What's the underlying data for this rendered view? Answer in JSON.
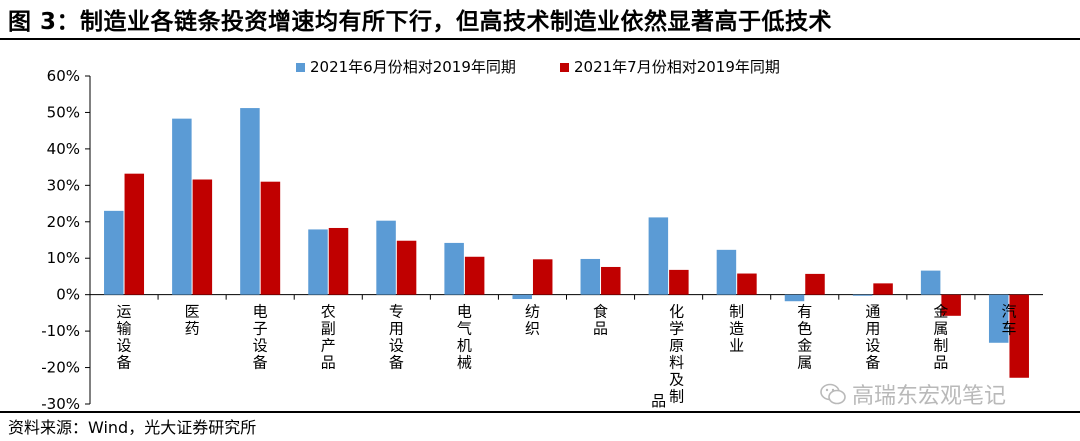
{
  "title": "图 3：制造业各链条投资增速均有所下行，但高技术制造业依然显著高于低技术",
  "source": "资料来源：Wind，光大证券研究所",
  "watermark": "高瑞东宏观笔记",
  "colors": {
    "series1": "#5b9bd5",
    "series2": "#c00000"
  },
  "chart_data": {
    "type": "bar",
    "categories": [
      "运输设备",
      "医药",
      "电子设备",
      "农副产品",
      "专用设备",
      "电气机械",
      "纺织",
      "食品",
      "化学原料及制品",
      "制造业",
      "有色金属",
      "通用设备",
      "金属制品",
      "汽车"
    ],
    "series": [
      {
        "name": "2021年6月份相对2019年同期",
        "values": [
          23.0,
          48.3,
          51.2,
          17.9,
          20.3,
          14.2,
          -1.2,
          9.8,
          21.2,
          12.3,
          -1.8,
          -0.3,
          6.6,
          -13.2
        ]
      },
      {
        "name": "2021年7月份相对2019年同期",
        "values": [
          33.2,
          31.6,
          31.0,
          18.3,
          14.8,
          10.4,
          9.7,
          7.6,
          6.8,
          5.8,
          5.7,
          3.1,
          -5.8,
          -22.8
        ]
      }
    ],
    "ylim": [
      -30,
      60
    ],
    "yticks": [
      -30,
      -20,
      -10,
      0,
      10,
      20,
      30,
      40,
      50,
      60
    ],
    "ytick_labels": [
      "-30%",
      "-20%",
      "-10%",
      "0%",
      "10%",
      "20%",
      "30%",
      "40%",
      "50%",
      "60%"
    ],
    "xlabel": "",
    "ylabel": "",
    "legend_position": "top"
  }
}
